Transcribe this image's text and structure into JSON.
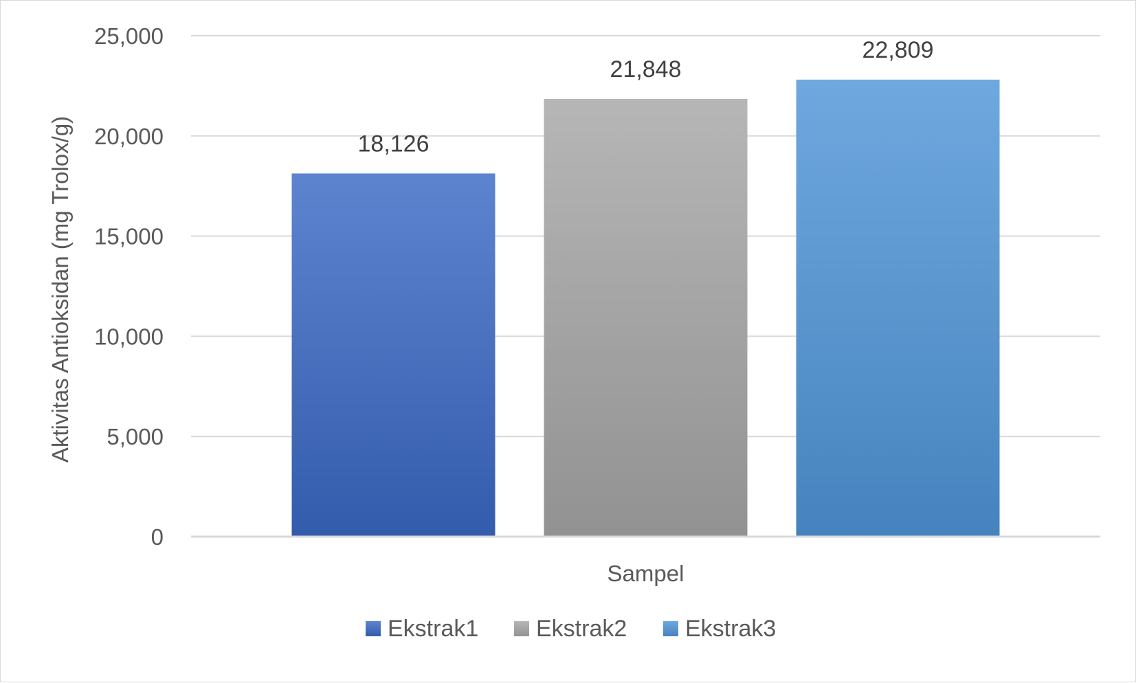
{
  "chart_data": {
    "type": "bar",
    "categories": [
      "Sampel"
    ],
    "series": [
      {
        "name": "Ekstrak1",
        "values": [
          18126
        ],
        "label": "18,126",
        "color": "#3a69c4"
      },
      {
        "name": "Ekstrak2",
        "values": [
          21848
        ],
        "label": "21,848",
        "color": "#a6a6a6"
      },
      {
        "name": "Ekstrak3",
        "values": [
          22809
        ],
        "label": "22,809",
        "color": "#4f95d8"
      }
    ],
    "xlabel": "Sampel",
    "ylabel": "Aktivitas Antioksidan (mg Trolox/g)",
    "ylim": [
      0,
      25000
    ],
    "yticks": [
      {
        "value": 0,
        "label": "0"
      },
      {
        "value": 5000,
        "label": "5,000"
      },
      {
        "value": 10000,
        "label": "10,000"
      },
      {
        "value": 15000,
        "label": "15,000"
      },
      {
        "value": 20000,
        "label": "20,000"
      },
      {
        "value": 25000,
        "label": "25,000"
      }
    ],
    "grid": true,
    "legend_position": "bottom",
    "gridline_color": "#d9d9d9"
  }
}
